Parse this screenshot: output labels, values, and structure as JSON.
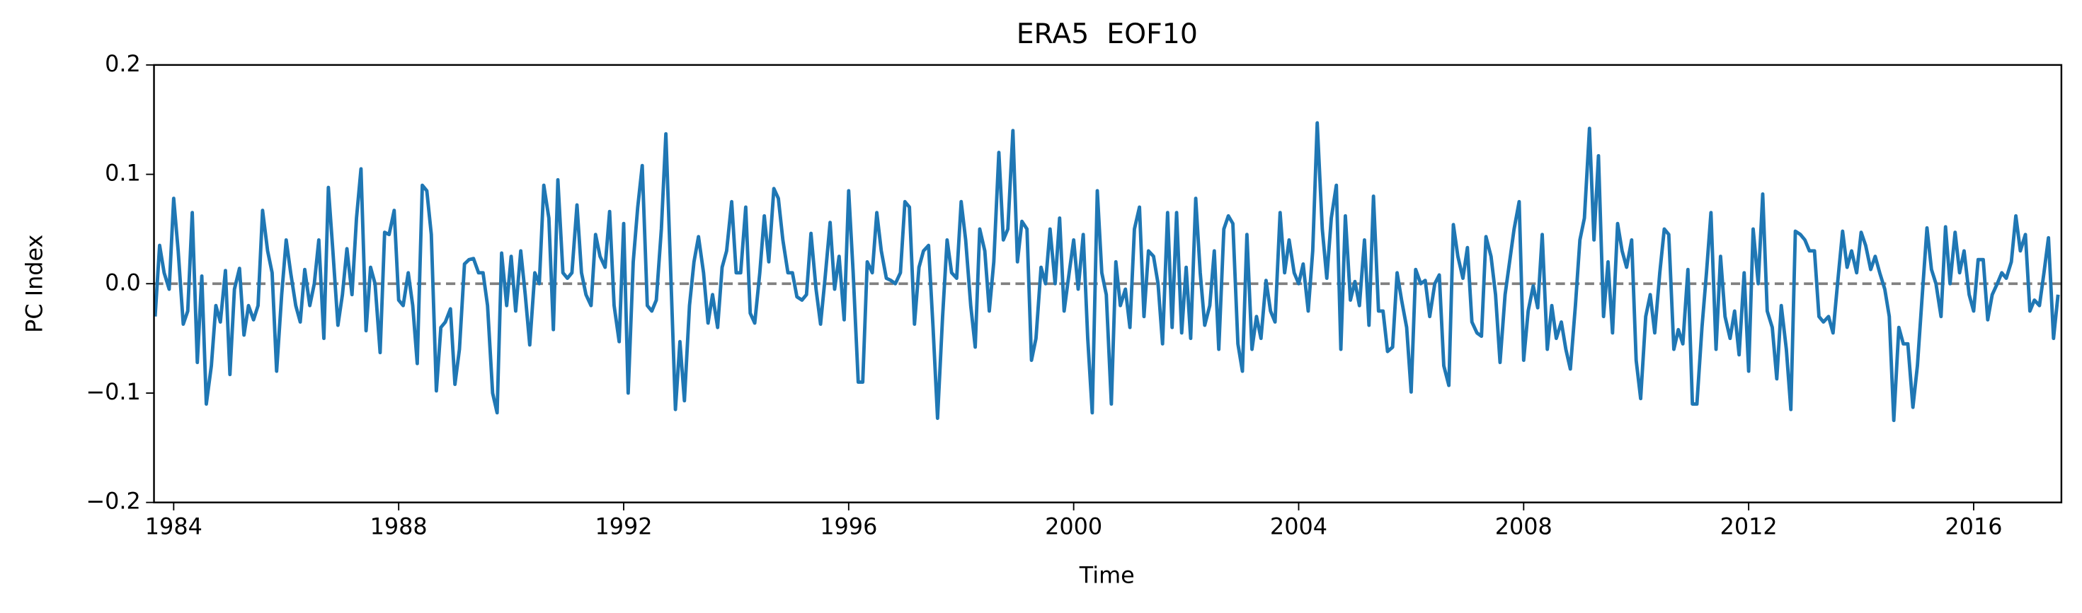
{
  "chart_data": {
    "type": "line",
    "title": "ERA5  EOF10",
    "xlabel": "Time",
    "ylabel": "PC Index",
    "xlim": [
      1983.65,
      2017.56
    ],
    "xticks": [
      1984,
      1988,
      1992,
      1996,
      2000,
      2004,
      2008,
      2012,
      2016
    ],
    "ylim": [
      -0.2,
      0.2
    ],
    "yticks": [
      {
        "value": -0.2,
        "label": "−0.2"
      },
      {
        "value": -0.1,
        "label": "−0.1"
      },
      {
        "value": 0,
        "label": "0.0"
      },
      0.1,
      0.2
    ],
    "reference_line": 0,
    "reference_color": "#808080",
    "x": [
      1983.67,
      1983.75,
      1983.83,
      1983.92,
      1984.0,
      1984.08,
      1984.17,
      1984.25,
      1984.33,
      1984.42,
      1984.5,
      1984.58,
      1984.67,
      1984.75,
      1984.83,
      1984.92,
      1985.0,
      1985.08,
      1985.17,
      1985.25,
      1985.33,
      1985.42,
      1985.5,
      1985.58,
      1985.67,
      1985.75,
      1985.83,
      1985.92,
      1986.0,
      1986.08,
      1986.17,
      1986.25,
      1986.33,
      1986.42,
      1986.5,
      1986.58,
      1986.67,
      1986.75,
      1986.83,
      1986.92,
      1987.0,
      1987.08,
      1987.17,
      1987.25,
      1987.33,
      1987.42,
      1987.5,
      1987.58,
      1987.67,
      1987.75,
      1987.83,
      1987.92,
      1988.0,
      1988.08,
      1988.17,
      1988.25,
      1988.33,
      1988.42,
      1988.5,
      1988.58,
      1988.67,
      1988.75,
      1988.83,
      1988.92,
      1989.0,
      1989.08,
      1989.17,
      1989.25,
      1989.33,
      1989.42,
      1989.5,
      1989.58,
      1989.67,
      1989.75,
      1989.83,
      1989.92,
      1990.0,
      1990.08,
      1990.17,
      1990.25,
      1990.33,
      1990.42,
      1990.5,
      1990.58,
      1990.67,
      1990.75,
      1990.83,
      1990.92,
      1991.0,
      1991.08,
      1991.17,
      1991.25,
      1991.33,
      1991.42,
      1991.5,
      1991.58,
      1991.67,
      1991.75,
      1991.83,
      1991.92,
      1992.0,
      1992.08,
      1992.17,
      1992.25,
      1992.33,
      1992.42,
      1992.5,
      1992.58,
      1992.67,
      1992.75,
      1992.83,
      1992.92,
      1993.0,
      1993.08,
      1993.17,
      1993.25,
      1993.33,
      1993.42,
      1993.5,
      1993.58,
      1993.67,
      1993.75,
      1993.83,
      1993.92,
      1994.0,
      1994.08,
      1994.17,
      1994.25,
      1994.33,
      1994.42,
      1994.5,
      1994.58,
      1994.67,
      1994.75,
      1994.83,
      1994.92,
      1995.0,
      1995.08,
      1995.17,
      1995.25,
      1995.33,
      1995.42,
      1995.5,
      1995.58,
      1995.67,
      1995.75,
      1995.83,
      1995.92,
      1996.0,
      1996.08,
      1996.17,
      1996.25,
      1996.33,
      1996.42,
      1996.5,
      1996.58,
      1996.67,
      1996.75,
      1996.83,
      1996.92,
      1997.0,
      1997.08,
      1997.17,
      1997.25,
      1997.33,
      1997.42,
      1997.5,
      1997.58,
      1997.67,
      1997.75,
      1997.83,
      1997.92,
      1998.0,
      1998.08,
      1998.17,
      1998.25,
      1998.33,
      1998.42,
      1998.5,
      1998.58,
      1998.67,
      1998.75,
      1998.83,
      1998.92,
      1999.0,
      1999.08,
      1999.17,
      1999.25,
      1999.33,
      1999.42,
      1999.5,
      1999.58,
      1999.67,
      1999.75,
      1999.83,
      1999.92,
      2000.0,
      2000.08,
      2000.17,
      2000.25,
      2000.33,
      2000.42,
      2000.5,
      2000.58,
      2000.67,
      2000.75,
      2000.83,
      2000.92,
      2001.0,
      2001.08,
      2001.17,
      2001.25,
      2001.33,
      2001.42,
      2001.5,
      2001.58,
      2001.67,
      2001.75,
      2001.83,
      2001.92,
      2002.0,
      2002.08,
      2002.17,
      2002.25,
      2002.33,
      2002.42,
      2002.5,
      2002.58,
      2002.67,
      2002.75,
      2002.83,
      2002.92,
      2003.0,
      2003.08,
      2003.17,
      2003.25,
      2003.33,
      2003.42,
      2003.5,
      2003.58,
      2003.67,
      2003.75,
      2003.83,
      2003.92,
      2004.0,
      2004.08,
      2004.17,
      2004.25,
      2004.33,
      2004.42,
      2004.5,
      2004.58,
      2004.67,
      2004.75,
      2004.83,
      2004.92,
      2005.0,
      2005.08,
      2005.17,
      2005.25,
      2005.33,
      2005.42,
      2005.5,
      2005.58,
      2005.67,
      2005.75,
      2005.83,
      2005.92,
      2006.0,
      2006.08,
      2006.17,
      2006.25,
      2006.33,
      2006.42,
      2006.5,
      2006.58,
      2006.67,
      2006.75,
      2006.83,
      2006.92,
      2007.0,
      2007.08,
      2007.17,
      2007.25,
      2007.33,
      2007.42,
      2007.5,
      2007.58,
      2007.67,
      2007.75,
      2007.83,
      2007.92,
      2008.0,
      2008.08,
      2008.17,
      2008.25,
      2008.33,
      2008.42,
      2008.5,
      2008.58,
      2008.67,
      2008.75,
      2008.83,
      2008.92,
      2009.0,
      2009.08,
      2009.17,
      2009.25,
      2009.33,
      2009.42,
      2009.5,
      2009.58,
      2009.67,
      2009.75,
      2009.83,
      2009.92,
      2010.0,
      2010.08,
      2010.17,
      2010.25,
      2010.33,
      2010.42,
      2010.5,
      2010.58,
      2010.67,
      2010.75,
      2010.83,
      2010.92,
      2011.0,
      2011.08,
      2011.17,
      2011.25,
      2011.33,
      2011.42,
      2011.5,
      2011.58,
      2011.67,
      2011.75,
      2011.83,
      2011.92,
      2012.0,
      2012.08,
      2012.17,
      2012.25,
      2012.33,
      2012.42,
      2012.5,
      2012.58,
      2012.67,
      2012.75,
      2012.83,
      2012.92,
      2013.0,
      2013.08,
      2013.17,
      2013.25,
      2013.33,
      2013.42,
      2013.5,
      2013.58,
      2013.67,
      2013.75,
      2013.83,
      2013.92,
      2014.0,
      2014.08,
      2014.17,
      2014.25,
      2014.33,
      2014.42,
      2014.5,
      2014.58,
      2014.67,
      2014.75,
      2014.83,
      2014.92,
      2015.0,
      2015.08,
      2015.17,
      2015.25,
      2015.33,
      2015.42,
      2015.5,
      2015.58,
      2015.67,
      2015.75,
      2015.83,
      2015.92,
      2016.0,
      2016.08,
      2016.17,
      2016.25,
      2016.33,
      2016.42,
      2016.5,
      2016.58,
      2016.67,
      2016.75,
      2016.83,
      2016.92,
      2017.0,
      2017.08,
      2017.17,
      2017.25,
      2017.33,
      2017.42,
      2017.5
    ],
    "series": [
      {
        "color": "#1f77b4",
        "values": [
          -0.03,
          0.035,
          0.01,
          -0.005,
          0.078,
          0.03,
          -0.037,
          -0.025,
          0.065,
          -0.072,
          0.007,
          -0.11,
          -0.075,
          -0.02,
          -0.035,
          0.012,
          -0.083,
          -0.005,
          0.014,
          -0.047,
          -0.02,
          -0.033,
          -0.02,
          0.067,
          0.03,
          0.01,
          -0.08,
          -0.01,
          0.04,
          0.01,
          -0.02,
          -0.035,
          0.013,
          -0.02,
          0.0,
          0.04,
          -0.05,
          0.088,
          0.03,
          -0.038,
          -0.01,
          0.032,
          -0.01,
          0.06,
          0.105,
          -0.043,
          0.015,
          0.0,
          -0.063,
          0.047,
          0.045,
          0.067,
          -0.015,
          -0.02,
          0.01,
          -0.02,
          -0.073,
          0.09,
          0.085,
          0.045,
          -0.098,
          -0.04,
          -0.035,
          -0.023,
          -0.092,
          -0.06,
          0.018,
          0.022,
          0.023,
          0.01,
          0.01,
          -0.02,
          -0.1,
          -0.118,
          0.028,
          -0.02,
          0.025,
          -0.025,
          0.03,
          -0.01,
          -0.056,
          0.01,
          0.0,
          0.09,
          0.06,
          -0.042,
          0.095,
          0.01,
          0.005,
          0.01,
          0.072,
          0.01,
          -0.01,
          -0.02,
          0.045,
          0.025,
          0.015,
          0.066,
          -0.02,
          -0.053,
          0.055,
          -0.1,
          0.02,
          0.07,
          0.108,
          -0.02,
          -0.025,
          -0.015,
          0.05,
          0.137,
          0.02,
          -0.115,
          -0.053,
          -0.107,
          -0.02,
          0.02,
          0.043,
          0.01,
          -0.036,
          -0.01,
          -0.04,
          0.015,
          0.03,
          0.075,
          0.01,
          0.01,
          0.07,
          -0.027,
          -0.036,
          0.01,
          0.062,
          0.02,
          0.087,
          0.078,
          0.04,
          0.01,
          0.01,
          -0.012,
          -0.015,
          -0.01,
          0.046,
          -0.005,
          -0.037,
          0.005,
          0.056,
          -0.005,
          0.025,
          -0.033,
          0.085,
          0.01,
          -0.09,
          -0.09,
          0.02,
          0.01,
          0.065,
          0.03,
          0.005,
          0.003,
          0.0,
          0.01,
          0.075,
          0.07,
          -0.037,
          0.015,
          0.03,
          0.035,
          -0.04,
          -0.123,
          -0.03,
          0.04,
          0.01,
          0.005,
          0.075,
          0.04,
          -0.02,
          -0.058,
          0.05,
          0.03,
          -0.025,
          0.02,
          0.12,
          0.04,
          0.05,
          0.14,
          0.02,
          0.057,
          0.05,
          -0.07,
          -0.05,
          0.015,
          0.0,
          0.05,
          0.0,
          0.06,
          -0.025,
          0.01,
          0.04,
          -0.005,
          0.045,
          -0.05,
          -0.118,
          0.085,
          0.01,
          -0.01,
          -0.11,
          0.02,
          -0.02,
          -0.005,
          -0.04,
          0.05,
          0.07,
          -0.03,
          0.03,
          0.025,
          0.0,
          -0.055,
          0.065,
          -0.04,
          0.065,
          -0.045,
          0.015,
          -0.05,
          0.078,
          0.01,
          -0.038,
          -0.02,
          0.03,
          -0.06,
          0.05,
          0.062,
          0.055,
          -0.055,
          -0.08,
          0.045,
          -0.06,
          -0.03,
          -0.05,
          0.003,
          -0.025,
          -0.035,
          0.065,
          0.01,
          0.04,
          0.01,
          0.0,
          0.018,
          -0.025,
          0.03,
          0.147,
          0.05,
          0.005,
          0.06,
          0.09,
          -0.06,
          0.062,
          -0.015,
          0.002,
          -0.02,
          0.04,
          -0.038,
          0.08,
          -0.025,
          -0.025,
          -0.062,
          -0.058,
          0.01,
          -0.015,
          -0.04,
          -0.099,
          0.013,
          0.0,
          0.003,
          -0.03,
          0.0,
          0.008,
          -0.075,
          -0.093,
          0.054,
          0.025,
          0.005,
          0.033,
          -0.035,
          -0.045,
          -0.048,
          0.043,
          0.025,
          -0.01,
          -0.072,
          -0.01,
          0.02,
          0.05,
          0.075,
          -0.07,
          -0.025,
          -0.002,
          -0.022,
          0.045,
          -0.06,
          -0.02,
          -0.05,
          -0.035,
          -0.06,
          -0.078,
          -0.02,
          0.04,
          0.06,
          0.142,
          0.04,
          0.117,
          -0.03,
          0.02,
          -0.045,
          0.055,
          0.03,
          0.015,
          0.04,
          -0.07,
          -0.105,
          -0.03,
          -0.01,
          -0.045,
          0.01,
          0.05,
          0.045,
          -0.06,
          -0.042,
          -0.055,
          0.013,
          -0.11,
          -0.11,
          -0.04,
          0.01,
          0.065,
          -0.06,
          0.025,
          -0.03,
          -0.05,
          -0.025,
          -0.065,
          0.01,
          -0.08,
          0.05,
          0.0,
          0.082,
          -0.025,
          -0.04,
          -0.087,
          -0.02,
          -0.06,
          -0.115,
          0.048,
          0.045,
          0.04,
          0.03,
          0.03,
          -0.03,
          -0.035,
          -0.03,
          -0.045,
          0.0,
          0.048,
          0.015,
          0.03,
          0.01,
          0.047,
          0.035,
          0.013,
          0.025,
          0.01,
          -0.005,
          -0.03,
          -0.125,
          -0.04,
          -0.055,
          -0.055,
          -0.113,
          -0.075,
          -0.015,
          0.051,
          0.013,
          0.0,
          -0.03,
          0.052,
          0.0,
          0.047,
          0.01,
          0.03,
          -0.01,
          -0.025,
          0.022,
          0.022,
          -0.033,
          -0.01,
          0.0,
          0.01,
          0.005,
          0.02,
          0.062,
          0.03,
          0.045,
          -0.025,
          -0.015,
          -0.02,
          0.01,
          0.042,
          -0.05,
          -0.01
        ]
      }
    ]
  }
}
